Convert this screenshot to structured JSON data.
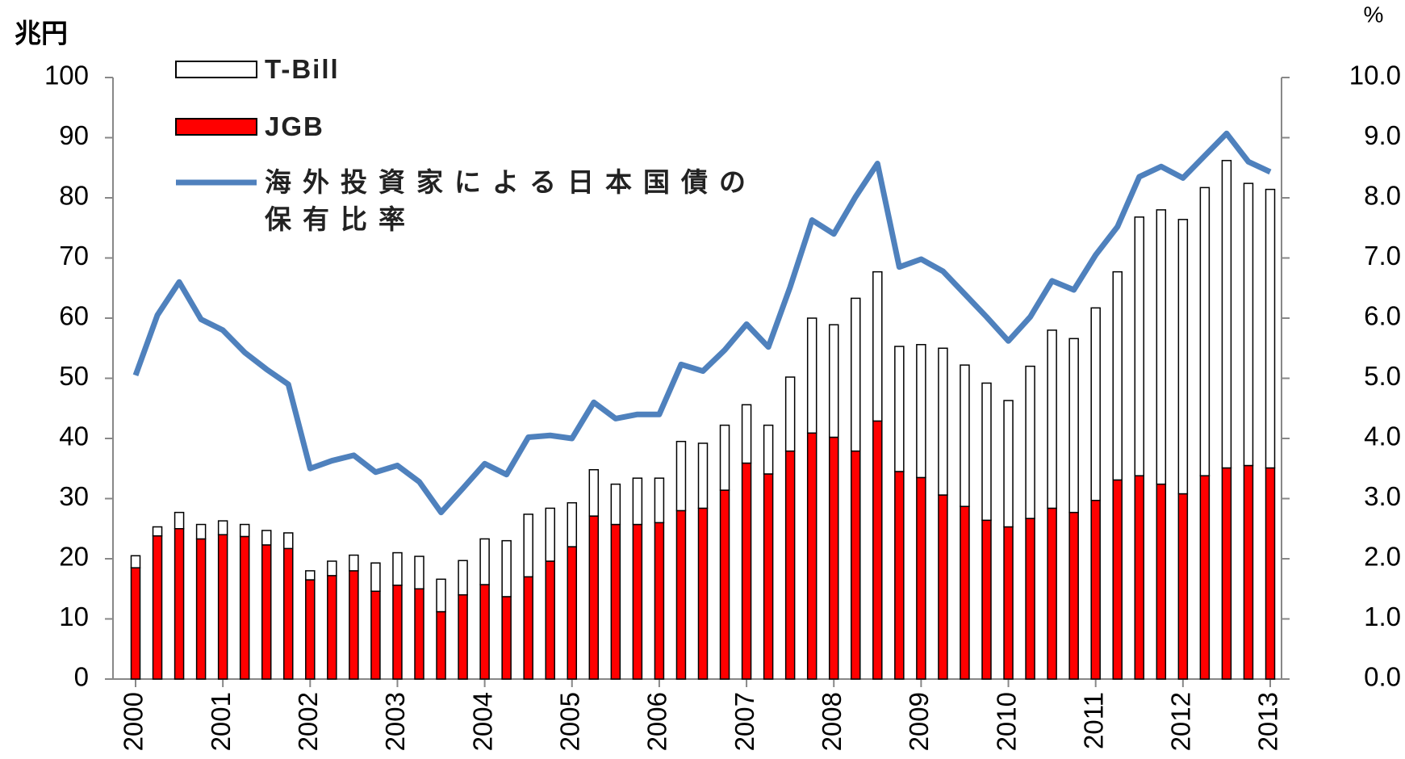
{
  "chart_data": {
    "type": "bar",
    "y_label": "兆円",
    "y2_label": "%",
    "categories": [
      "2000",
      null,
      null,
      null,
      "2001",
      null,
      null,
      null,
      "2002",
      null,
      null,
      null,
      "2003",
      null,
      null,
      null,
      "2004",
      null,
      null,
      null,
      "2005",
      null,
      null,
      null,
      "2006",
      null,
      null,
      null,
      "2007",
      null,
      null,
      null,
      "2008",
      null,
      null,
      null,
      "2009",
      null,
      null,
      null,
      "2010",
      null,
      null,
      null,
      "2011",
      null,
      null,
      null,
      "2012",
      null,
      null,
      null,
      "2013"
    ],
    "stacked": true,
    "series": [
      {
        "name": "JGB",
        "type": "bar",
        "color": "#ff0000",
        "values": [
          18.5,
          23.8,
          25,
          23.3,
          24,
          23.7,
          22.3,
          21.7,
          16.5,
          17.2,
          18,
          14.6,
          15.6,
          15,
          11.2,
          14,
          15.7,
          13.7,
          17,
          19.6,
          22,
          27.1,
          25.7,
          25.7,
          26,
          28,
          28.4,
          31.4,
          35.9,
          34.1,
          37.9,
          40.9,
          40.2,
          37.9,
          42.9,
          34.5,
          33.5,
          30.6,
          28.7,
          26.4,
          25.3,
          26.7,
          28.4,
          27.7,
          29.7,
          33.1,
          33.8,
          32.4,
          30.8,
          33.8,
          35.1,
          35.5,
          35.1
        ]
      },
      {
        "name": "T-Bill",
        "type": "bar",
        "color": "#ffffff",
        "values": [
          2.0,
          1.5,
          2.7,
          2.4,
          2.3,
          2.0,
          2.4,
          2.6,
          1.5,
          2.4,
          2.6,
          4.7,
          5.4,
          5.4,
          5.4,
          5.7,
          7.6,
          9.3,
          10.4,
          8.8,
          7.3,
          7.7,
          6.7,
          7.7,
          7.4,
          11.5,
          10.8,
          10.8,
          9.7,
          8.1,
          12.3,
          19.1,
          18.7,
          25.4,
          24.8,
          20.8,
          22.1,
          24.4,
          23.5,
          22.8,
          21.0,
          25.3,
          29.6,
          28.9,
          32.0,
          34.6,
          43.0,
          45.6,
          45.6,
          47.9,
          51.1,
          46.9,
          46.3
        ]
      },
      {
        "name": "海外投資家による日本国債の保有比率",
        "type": "line",
        "axis": "y2",
        "color": "#4f81bd",
        "values": [
          5.05,
          6.05,
          6.6,
          5.98,
          5.8,
          5.43,
          5.15,
          4.9,
          3.5,
          3.63,
          3.72,
          3.44,
          3.55,
          3.28,
          2.77,
          3.17,
          3.58,
          3.4,
          4.02,
          4.05,
          4.0,
          4.6,
          4.33,
          4.4,
          4.4,
          5.23,
          5.12,
          5.47,
          5.9,
          5.52,
          6.52,
          7.63,
          7.4,
          8.02,
          8.57,
          6.85,
          6.98,
          6.78,
          6.4,
          6.02,
          5.62,
          6.02,
          6.62,
          6.47,
          7.05,
          7.52,
          8.35,
          8.52,
          8.33,
          8.7,
          9.07,
          8.6,
          8.43
        ]
      }
    ],
    "ylim": [
      0,
      100
    ],
    "yticks": [
      0,
      10,
      20,
      30,
      40,
      50,
      60,
      70,
      80,
      90,
      100
    ],
    "y2lim": [
      0,
      10
    ],
    "y2ticks": [
      {
        "value": 0,
        "label": "0.0"
      },
      {
        "value": 1,
        "label": "1.0"
      },
      {
        "value": 2,
        "label": "2.0"
      },
      {
        "value": 3,
        "label": "3.0"
      },
      {
        "value": 4,
        "label": "4.0"
      },
      {
        "value": 5,
        "label": "5.0"
      },
      {
        "value": 6,
        "label": "6.0"
      },
      {
        "value": 7,
        "label": "7.0"
      },
      {
        "value": 8,
        "label": "8.0"
      },
      {
        "value": 9,
        "label": "9.0"
      },
      {
        "value": 10,
        "label": "10.0"
      }
    ],
    "legend": "upper left"
  }
}
